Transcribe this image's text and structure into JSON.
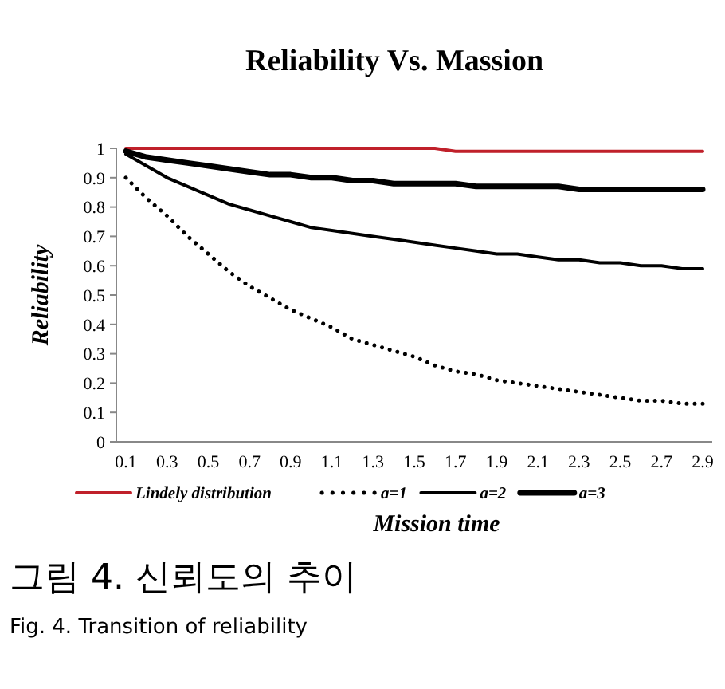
{
  "chart_data": {
    "type": "line",
    "title": "Reliability Vs. Massion",
    "xlabel": "Mission time",
    "ylabel": "Reliability",
    "categories": [
      "0.1",
      null,
      "0.3",
      null,
      "0.5",
      null,
      "0.7",
      null,
      "0.9",
      null,
      "1.1",
      null,
      "1.3",
      null,
      "1.5",
      null,
      "1.7",
      null,
      "1.9",
      null,
      "2.1",
      null,
      "2.3",
      null,
      "2.5",
      null,
      "2.7",
      null,
      "2.9"
    ],
    "series": [
      {
        "name": "Lindely distribution",
        "color": "#c0202a",
        "line_style": "solid",
        "values": [
          1,
          1,
          1,
          1,
          1,
          1,
          1,
          1,
          1,
          1,
          1,
          1,
          1,
          1,
          1,
          1,
          0.99,
          0.99,
          0.99,
          0.99,
          0.99,
          0.99,
          0.99,
          0.99,
          0.99,
          0.99,
          0.99,
          0.99,
          0.99
        ]
      },
      {
        "name": "a=1",
        "color": "#000000",
        "line_style": "dotted",
        "values": [
          0.9,
          0.83,
          0.77,
          0.7,
          0.64,
          0.58,
          0.53,
          0.49,
          0.45,
          0.42,
          0.39,
          0.35,
          0.33,
          0.31,
          0.29,
          0.26,
          0.24,
          0.23,
          0.21,
          0.2,
          0.19,
          0.18,
          0.17,
          0.16,
          0.15,
          0.14,
          0.14,
          0.13,
          0.13
        ]
      },
      {
        "name": "a=2",
        "color": "#000000",
        "line_style": "solid",
        "values": [
          0.98,
          0.94,
          0.9,
          0.87,
          0.84,
          0.81,
          0.79,
          0.77,
          0.75,
          0.73,
          0.72,
          0.71,
          0.7,
          0.69,
          0.68,
          0.67,
          0.66,
          0.65,
          0.64,
          0.64,
          0.63,
          0.62,
          0.62,
          0.61,
          0.61,
          0.6,
          0.6,
          0.59,
          0.59
        ]
      },
      {
        "name": "a=3",
        "color": "#000000",
        "line_style": "solid",
        "values": [
          0.99,
          0.97,
          0.96,
          0.95,
          0.94,
          0.93,
          0.92,
          0.91,
          0.91,
          0.9,
          0.9,
          0.89,
          0.89,
          0.88,
          0.88,
          0.88,
          0.88,
          0.87,
          0.87,
          0.87,
          0.87,
          0.87,
          0.86,
          0.86,
          0.86,
          0.86,
          0.86,
          0.86,
          0.86
        ]
      }
    ],
    "ylim": [
      0,
      1
    ],
    "yticks": [
      0,
      0.1,
      0.2,
      0.3,
      0.4,
      0.5,
      0.6,
      0.7,
      0.8,
      0.9,
      1
    ],
    "grid": false,
    "legend": "bottom",
    "marker": "none",
    "annotations": [
      "그림 4. 신뢰도의 추이",
      "Fig. 4. Transition of reliability"
    ]
  }
}
